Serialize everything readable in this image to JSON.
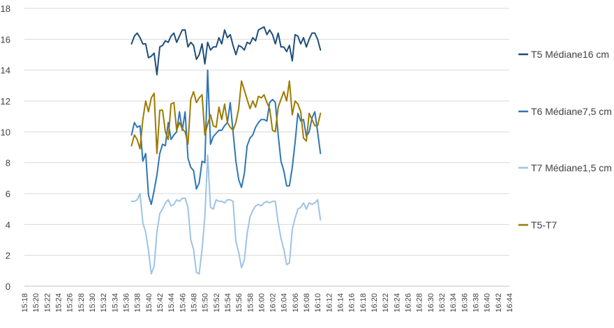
{
  "chart_data": {
    "type": "line",
    "title": "",
    "xlabel": "",
    "ylabel": "",
    "ylim": [
      0,
      18
    ],
    "yticks": [
      0,
      2,
      4,
      6,
      8,
      10,
      12,
      14,
      16,
      18
    ],
    "grid": "horizontal",
    "legend_position": "right",
    "x_tick_labels": [
      "15:18",
      "15:20",
      "15:22",
      "15:24",
      "15:26",
      "15:28",
      "15:30",
      "15:32",
      "15:34",
      "15:36",
      "15:38",
      "15:40",
      "15:42",
      "15:44",
      "15:46",
      "15:48",
      "15:50",
      "15:52",
      "15:54",
      "15:56",
      "15:58",
      "16:00",
      "16:02",
      "16:04",
      "16:06",
      "16:08",
      "16:10",
      "16:12",
      "16:14",
      "16:16",
      "16:18",
      "16:20",
      "16:22",
      "16:24",
      "16:26",
      "16:28",
      "16:30",
      "16:32",
      "16:34",
      "16:36",
      "16:38",
      "16:40",
      "16:42",
      "16:44"
    ],
    "x_range": [
      "15:18",
      "16:44"
    ],
    "series": [
      {
        "name": "T5 Médiane16 cm",
        "color": "#1f4e79",
        "x_start": "15:37",
        "values": [
          15.7,
          16.2,
          16.4,
          16.1,
          15.7,
          15.7,
          14.8,
          14.9,
          15.1,
          13.7,
          15.5,
          15.6,
          15.9,
          15.8,
          16.2,
          16.4,
          15.8,
          16.2,
          16.6,
          16.6,
          15.5,
          15.8,
          15.6,
          14.7,
          15.0,
          15.7,
          14.4,
          15.8,
          15.3,
          15.5,
          15.5,
          16.1,
          15.7,
          16.6,
          16.1,
          16.3,
          15.6,
          15.0,
          15.6,
          15.5,
          15.3,
          15.8,
          15.7,
          16.1,
          15.9,
          16.6,
          16.7,
          16.8,
          16.3,
          16.6,
          16.3,
          15.7,
          16.4,
          15.5,
          15.5,
          15.2,
          15.6,
          14.6,
          16.3,
          16.2,
          15.7,
          16.1,
          15.5,
          16.0,
          16.4,
          16.4,
          16.0,
          15.3
        ]
      },
      {
        "name": "T6 Médiane7,5 cm",
        "color": "#2e75b6",
        "x_start": "15:37",
        "values": [
          9.8,
          10.6,
          10.3,
          10.4,
          8.1,
          8.6,
          5.9,
          5.3,
          6.2,
          7.2,
          8.6,
          9.2,
          9.1,
          10.6,
          9.5,
          9.8,
          10.0,
          11.3,
          10.1,
          11.3,
          8.3,
          7.7,
          7.5,
          6.3,
          6.7,
          8.1,
          8.0,
          14.0,
          9.2,
          9.7,
          9.9,
          10.1,
          10.1,
          10.4,
          10.6,
          11.9,
          10.0,
          8.1,
          6.9,
          6.4,
          7.3,
          9.1,
          9.6,
          9.8,
          10.3,
          10.6,
          10.8,
          10.8,
          10.7,
          11.9,
          12.1,
          11.9,
          9.8,
          8.1,
          7.5,
          6.5,
          6.5,
          7.7,
          9.3,
          11.2,
          10.7,
          10.8,
          9.7,
          10.0,
          10.9,
          11.3,
          10.0,
          8.6
        ]
      },
      {
        "name": "T7 Médiane1,5 cm",
        "color": "#9dc3e6",
        "x_start": "15:37",
        "values": [
          5.5,
          5.5,
          5.6,
          6.0,
          4.1,
          3.5,
          2.3,
          0.8,
          1.3,
          3.5,
          4.7,
          5.0,
          5.4,
          5.6,
          5.2,
          5.3,
          5.6,
          5.5,
          5.7,
          5.7,
          5.1,
          3.0,
          2.4,
          0.9,
          0.8,
          2.4,
          4.5,
          8.5,
          5.1,
          5.0,
          5.6,
          5.5,
          5.5,
          5.4,
          5.6,
          5.6,
          5.5,
          2.9,
          2.2,
          1.2,
          1.7,
          3.4,
          4.5,
          4.9,
          5.2,
          5.3,
          5.2,
          5.4,
          5.5,
          5.4,
          5.5,
          5.5,
          4.1,
          3.1,
          2.4,
          1.4,
          1.5,
          3.7,
          4.4,
          5.0,
          5.1,
          5.4,
          5.0,
          5.4,
          5.3,
          5.4,
          5.6,
          4.3
        ]
      },
      {
        "name": "T5-T7",
        "color": "#9c7a00",
        "x_start": "15:37",
        "values": [
          9.1,
          9.8,
          9.5,
          8.9,
          10.8,
          12.0,
          11.3,
          12.2,
          12.5,
          8.6,
          11.4,
          11.4,
          10.0,
          9.5,
          11.8,
          11.9,
          10.1,
          10.6,
          10.2,
          10.0,
          9.2,
          12.1,
          12.6,
          11.9,
          12.2,
          12.4,
          9.8,
          10.5,
          11.1,
          10.4,
          10.3,
          11.6,
          10.8,
          11.8,
          10.6,
          10.3,
          10.1,
          10.6,
          11.5,
          13.3,
          12.7,
          12.1,
          11.5,
          12.0,
          11.6,
          12.3,
          12.2,
          12.4,
          11.9,
          11.5,
          10.1,
          10.0,
          11.6,
          12.1,
          12.6,
          12.0,
          13.3,
          11.1,
          12.0,
          11.8,
          11.3,
          9.6,
          9.4,
          11.2,
          10.8,
          10.4,
          10.4,
          11.2
        ]
      }
    ]
  }
}
